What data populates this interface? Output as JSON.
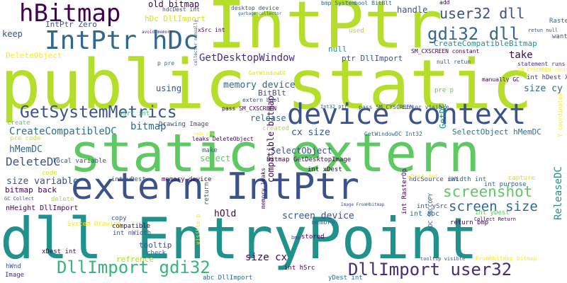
{
  "words": [
    {
      "text": "public static",
      "color": "#b5de2b"
    },
    {
      "text": "static extern",
      "color": "#5ec962"
    },
    {
      "text": "dll EntryPoint",
      "color": "#21918c"
    },
    {
      "text": "IntPtr",
      "color": "#b5de2b"
    },
    {
      "text": "extern IntPtr",
      "color": "#3b528b"
    },
    {
      "text": "device context",
      "color": "#3b528b"
    },
    {
      "text": "IntPtr hDc",
      "color": "#31688e"
    },
    {
      "text": "hBitmap",
      "color": "#440154"
    },
    {
      "text": "GetSystemMetrics",
      "color": "#3b528b"
    },
    {
      "text": "DllImport gdi32",
      "color": "#35b779"
    },
    {
      "text": "DllImport user32",
      "color": "#472d7b"
    },
    {
      "text": "gdi32 dll",
      "color": "#31688e"
    },
    {
      "text": "user32 dll",
      "color": "#3b528b"
    },
    {
      "text": "screenshot",
      "color": "#5ec962"
    },
    {
      "text": "screen size",
      "color": "#31688e"
    },
    {
      "text": "GetDesktopWindow",
      "color": "#472d7b"
    },
    {
      "text": "CreateCompatibleDC",
      "color": "#2c728e"
    },
    {
      "text": "DeleteDC",
      "color": "#3b528b"
    },
    {
      "text": "hMemDC",
      "color": "#31688e"
    },
    {
      "text": "size variable",
      "color": "#3b528b"
    },
    {
      "text": "bitmap",
      "color": "#31688e"
    },
    {
      "text": "memory device",
      "color": "#31688e"
    },
    {
      "text": "screen device",
      "color": "#3b528b"
    },
    {
      "text": "size cy",
      "color": "#31688e"
    },
    {
      "text": "take",
      "color": "#440154"
    },
    {
      "text": "ReleaseDC",
      "color": "#21918c"
    },
    {
      "text": "old bitmap",
      "color": "#440154"
    },
    {
      "text": "CreateCompatibleBitmap",
      "color": "#21918c"
    },
    {
      "text": "SelectObject",
      "color": "#3b528b"
    },
    {
      "text": "compatible bitmap",
      "color": "#440154"
    },
    {
      "text": "hOld",
      "color": "#440154"
    },
    {
      "text": "cx size",
      "color": "#3b528b"
    },
    {
      "text": "size cx",
      "color": "#440154"
    },
    {
      "text": "handle",
      "color": "#3b528b"
    },
    {
      "text": "BitBlt",
      "color": "#3b528b"
    },
    {
      "text": "GetDC",
      "color": "#21918c"
    },
    {
      "text": "using",
      "color": "#3b528b"
    },
    {
      "text": "keep",
      "color": "#3b528b"
    },
    {
      "text": "select",
      "color": "#5ec962"
    },
    {
      "text": "release",
      "color": "#31688e"
    },
    {
      "text": "DeleteObject",
      "color": "#fde725"
    },
    {
      "text": "SelectObject hMemDC",
      "color": "#2c728e"
    },
    {
      "text": "hDc DllImport",
      "color": "#d8e219"
    },
    {
      "text": "IntPtr Zero",
      "color": "#3b528b"
    },
    {
      "text": "ptr DllImport",
      "color": "#3b528b"
    },
    {
      "text": "tooltip",
      "color": "#3b528b"
    },
    {
      "text": "null",
      "color": "#21918c"
    },
    {
      "text": "used",
      "color": "#aadc32"
    },
    {
      "text": "memory",
      "color": "#31688e"
    },
    {
      "text": "refrence",
      "color": "#aadc32"
    },
    {
      "text": "bitmap back",
      "color": "#440154"
    },
    {
      "text": "nHeight DllImport",
      "color": "#440154"
    },
    {
      "text": "xDest int",
      "color": "#440154"
    },
    {
      "text": "hWnd",
      "color": "#3b528b"
    },
    {
      "text": "Image",
      "color": "#472d7b"
    },
    {
      "text": "abc DllImport",
      "color": "#31688e"
    },
    {
      "text": "int nWidth",
      "color": "#3b528b"
    },
    {
      "text": "int xDest",
      "color": "#440154"
    },
    {
      "text": "int abc",
      "color": "#31688e"
    },
    {
      "text": "int yDest",
      "color": "#5ec962"
    },
    {
      "text": "int hDest X coordinates",
      "color": "#472d7b"
    },
    {
      "text": "int hSrc",
      "color": "#440154"
    },
    {
      "text": "int ySrc",
      "color": "#3b528b"
    },
    {
      "text": "int wDest",
      "color": "#3b528b"
    },
    {
      "text": "int RasterOp",
      "color": "#440154"
    },
    {
      "text": "yDest int",
      "color": "#31688e"
    },
    {
      "text": "hdcSource int",
      "color": "#3b528b"
    },
    {
      "text": "nWidth int",
      "color": "#31688e"
    },
    {
      "text": "int purpose",
      "color": "#31688e"
    },
    {
      "text": "capture",
      "color": "#d8e219"
    },
    {
      "text": "System Drawing",
      "color": "#fde725"
    },
    {
      "text": "pre code",
      "color": "#d8e219"
    },
    {
      "text": "code",
      "color": "#d8e219"
    },
    {
      "text": "delete",
      "color": "#aadc32"
    },
    {
      "text": "check",
      "color": "#31688e"
    },
    {
      "text": "make",
      "color": "#31688e"
    },
    {
      "text": "pre p",
      "color": "#5ec962"
    },
    {
      "text": "created",
      "color": "#b5de2b"
    },
    {
      "text": "create",
      "color": "#5ec962"
    },
    {
      "text": "local variable",
      "color": "#3b528b"
    },
    {
      "text": "return bmp",
      "color": "#440154"
    },
    {
      "text": "stored",
      "color": "#440154"
    },
    {
      "text": "return",
      "color": "#3b528b"
    },
    {
      "text": "copy",
      "color": "#3b528b"
    },
    {
      "text": "compatible",
      "color": "#440154"
    },
    {
      "text": "ySrc int",
      "color": "#35b779"
    },
    {
      "text": "Drawing Image",
      "color": "#3b528b"
    },
    {
      "text": "memory device",
      "color": "#440154"
    },
    {
      "text": "Bitmap GetDesktopImage",
      "color": "#440154"
    },
    {
      "text": "RasterOp DllImport",
      "color": "#31688e"
    },
    {
      "text": "want",
      "color": "#3b528b"
    },
    {
      "text": "add",
      "color": "#440154"
    },
    {
      "text": "bmp System",
      "color": "#31688e"
    },
    {
      "text": "bool BitBlt",
      "color": "#31688e"
    },
    {
      "text": "desktop device",
      "color": "#3b528b"
    },
    {
      "text": "hdcDest int",
      "color": "#3b528b"
    },
    {
      "text": "xSrc int",
      "color": "#440154"
    },
    {
      "text": "p pre",
      "color": "#31688e"
    },
    {
      "text": "null retun",
      "color": "#3b528b"
    },
    {
      "text": "SM_CXSCREEN constant",
      "color": "#440154"
    },
    {
      "text": "pass SM_CXSCREEN",
      "color": "#440154"
    },
    {
      "text": "pass SM_CYSCREEN",
      "color": "#3b528b"
    },
    {
      "text": "cursor visible",
      "color": "#3b528b"
    },
    {
      "text": "GetWindowDC Int32",
      "color": "#31688e"
    },
    {
      "text": "GetWindowDC",
      "color": "#d8e219"
    },
    {
      "text": "extern bool",
      "color": "#3b528b"
    },
    {
      "text": "leaks DeleteObject",
      "color": "#440154"
    },
    {
      "text": "statement runs",
      "color": "#472d7b"
    },
    {
      "text": "Y coordinates",
      "color": "#fde725"
    },
    {
      "text": "SM_CYSCREEN constant",
      "color": "#fde725"
    },
    {
      "text": "retun null",
      "color": "#3b528b"
    },
    {
      "text": "manually GC",
      "color": "#440154"
    },
    {
      "text": "bmp",
      "color": "#3b528b"
    },
    {
      "text": "GC Collect",
      "color": "#3b528b"
    },
    {
      "text": "Collect Return",
      "color": "#440154"
    },
    {
      "text": "tooltip visible",
      "color": "#3b528b"
    },
    {
      "text": "FromHbitmap bitmap",
      "color": "#fde725"
    },
    {
      "text": "hDC SRCCOPY",
      "color": "#31688e"
    },
    {
      "text": "Int32 ptr",
      "color": "#31688e"
    },
    {
      "text": "avoid memory",
      "color": "#472d7b"
    },
    {
      "text": "garbage collector",
      "color": "#31688e"
    },
    {
      "text": "collector manually",
      "color": "#3b528b"
    },
    {
      "text": "code pre",
      "color": "#fde725"
    },
    {
      "text": "memory leaks",
      "color": "#440154"
    },
    {
      "text": "Image FromHbitmap",
      "color": "#3b528b"
    },
    {
      "text": "visible p",
      "color": "#fde725"
    },
    {
      "text": "wDest int",
      "color": "#fde725"
    },
    {
      "text": "int nWidth",
      "color": "#3b528b"
    }
  ]
}
